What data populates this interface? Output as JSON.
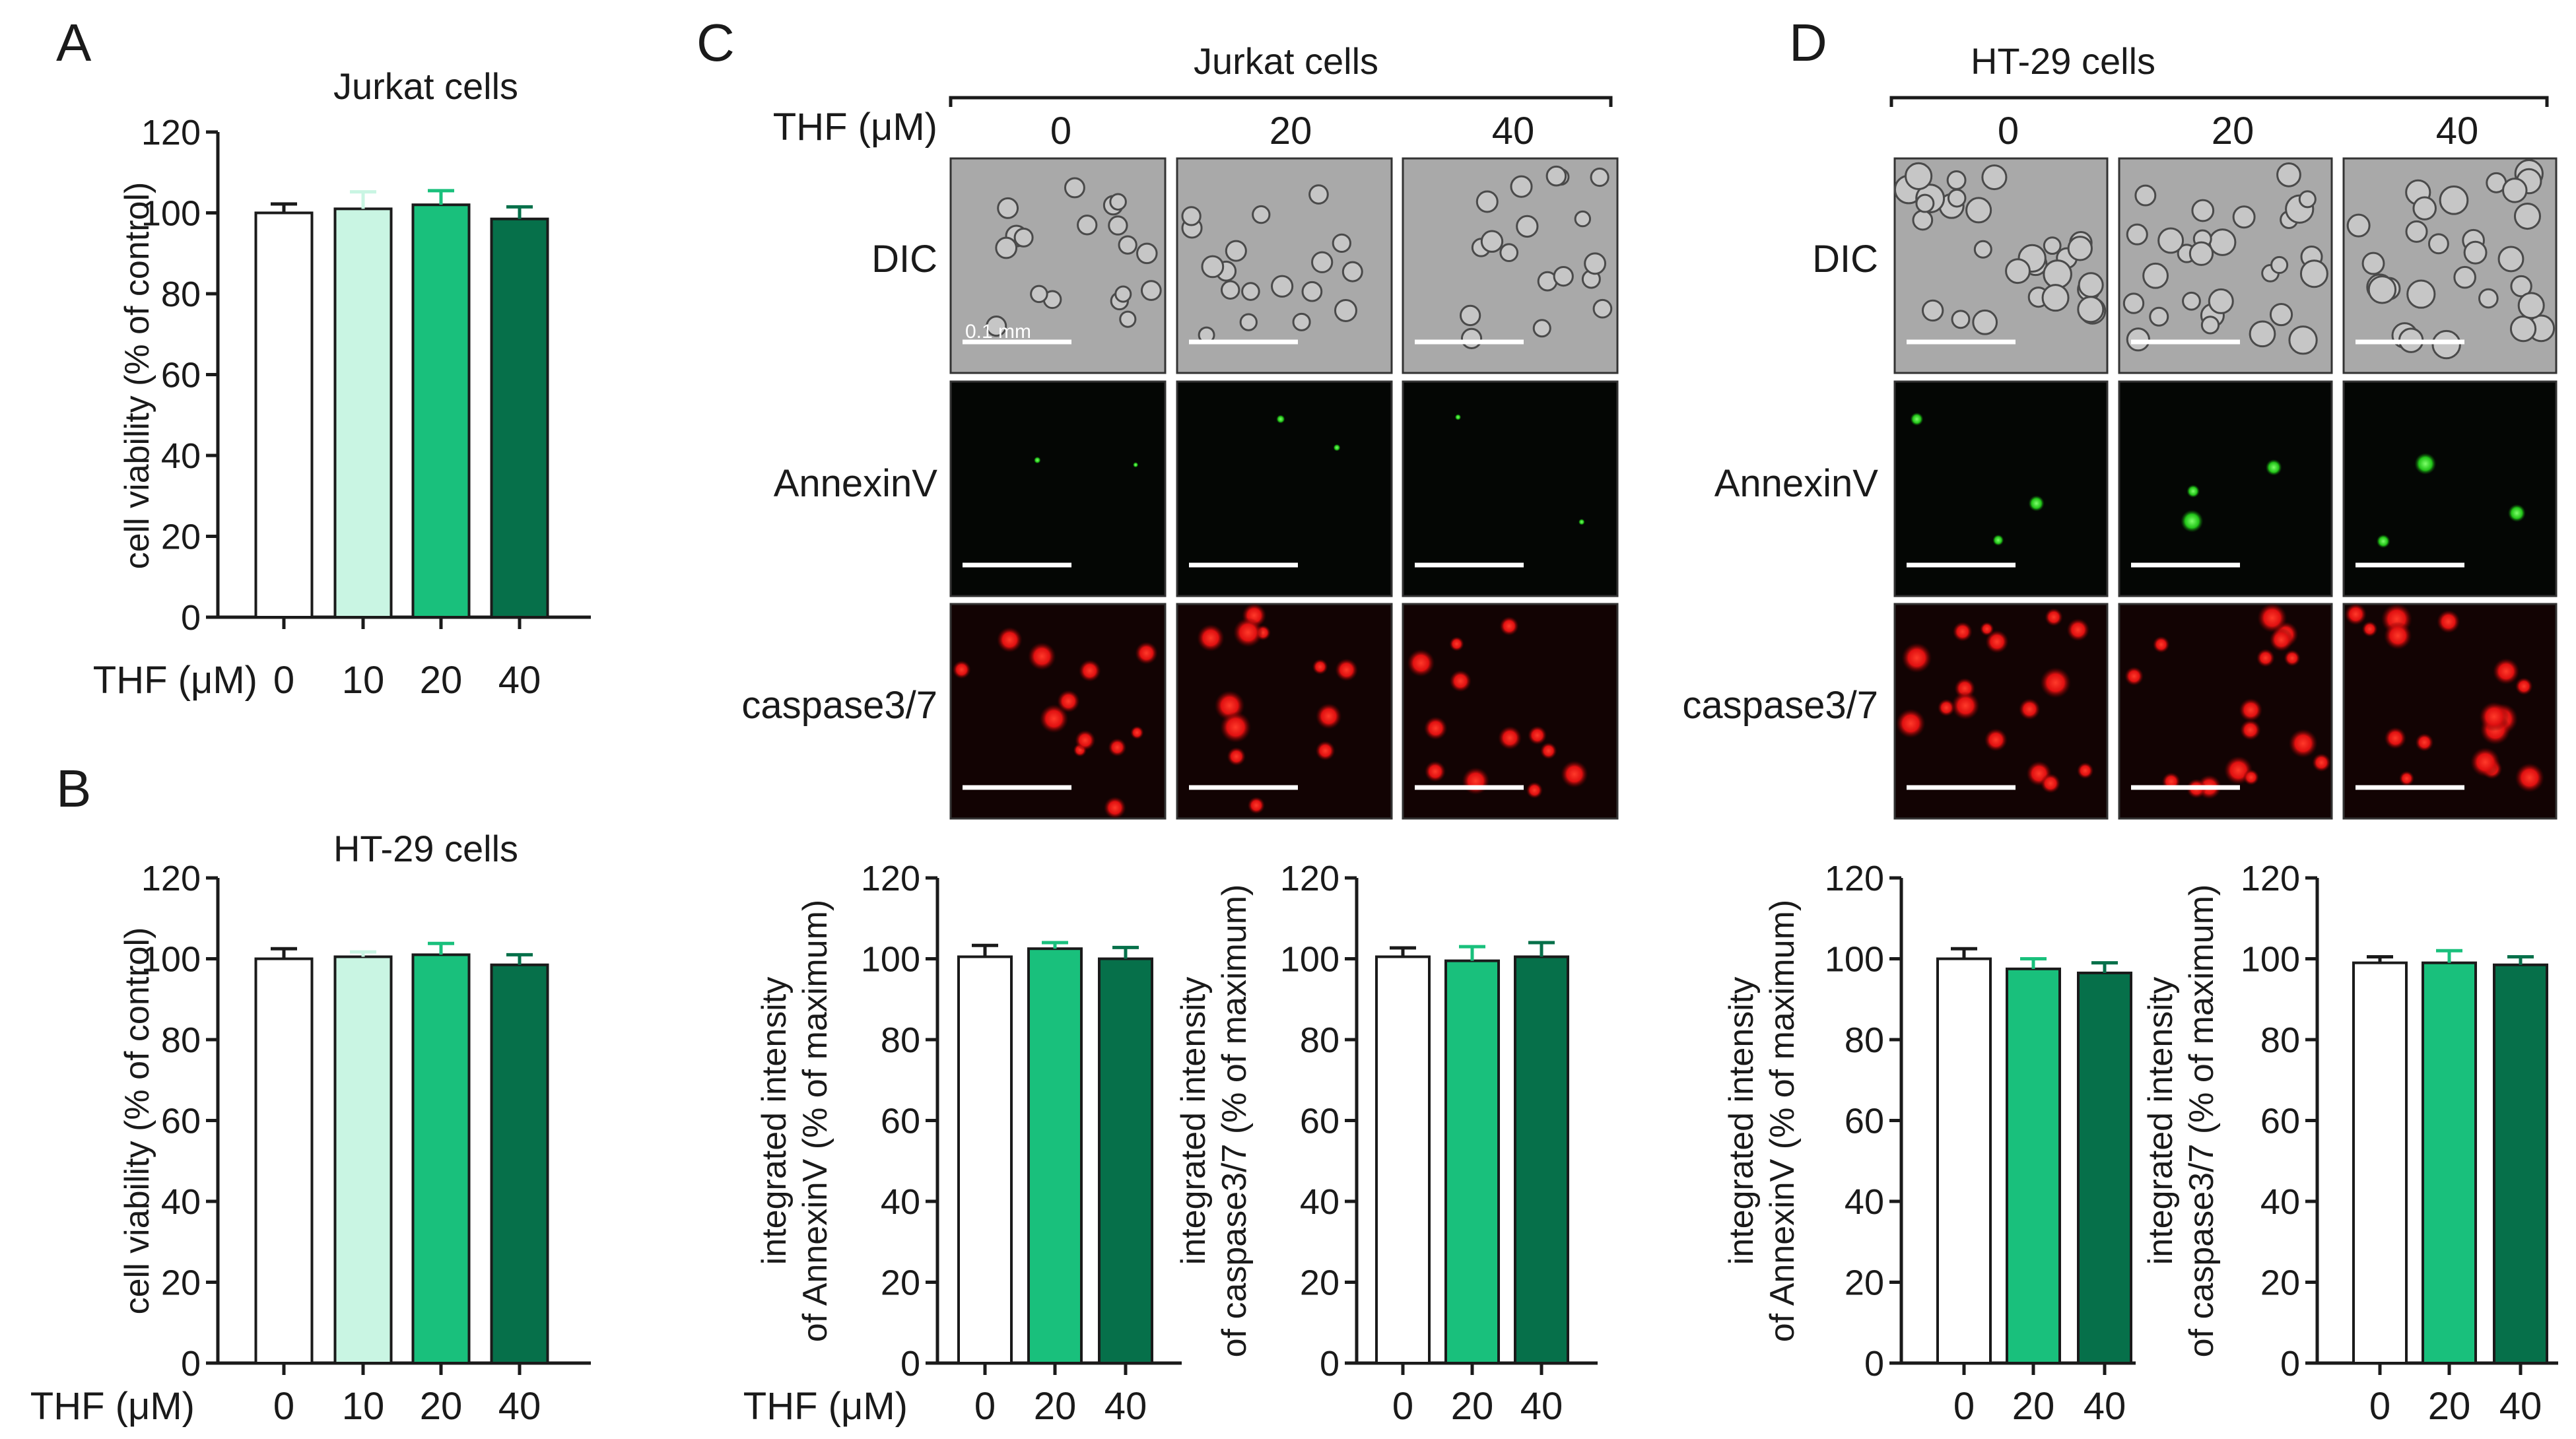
{
  "panels": {
    "A": "A",
    "B": "B",
    "C": "C",
    "D": "D"
  },
  "colors": {
    "c0": "#ffffff",
    "c10": "#c9f5e3",
    "c20": "#19c07c",
    "c40": "#06704a"
  },
  "thf_label": "THF (μM)",
  "microscopy": {
    "C": {
      "title": "Jurkat cells",
      "concs": [
        "0",
        "20",
        "40"
      ],
      "rows": [
        "DIC",
        "AnnexinV",
        "caspase3/7"
      ],
      "scale_label": "0.1 mm"
    },
    "D": {
      "title": "HT-29 cells",
      "concs": [
        "0",
        "20",
        "40"
      ],
      "rows": [
        "DIC",
        "AnnexinV",
        "caspase3/7"
      ]
    }
  },
  "chart_data": [
    {
      "id": "A",
      "type": "bar",
      "title": "Jurkat cells",
      "xlabel": "THF (μM)",
      "ylabel": "cell viability (% of control)",
      "ylim": [
        0,
        120
      ],
      "yticks": [
        "0",
        "20",
        "40",
        "60",
        "80",
        "100",
        "120"
      ],
      "categories": [
        "0",
        "10",
        "20",
        "40"
      ],
      "values": [
        100,
        101,
        102,
        98.5
      ],
      "errors": [
        2.2,
        4.2,
        3.5,
        3.0
      ]
    },
    {
      "id": "B",
      "type": "bar",
      "title": "HT-29 cells",
      "xlabel": "THF (μM)",
      "ylabel": "cell viability (% of control)",
      "ylim": [
        0,
        120
      ],
      "yticks": [
        "0",
        "20",
        "40",
        "60",
        "80",
        "100",
        "120"
      ],
      "categories": [
        "0",
        "10",
        "20",
        "40"
      ],
      "values": [
        100,
        100.5,
        101,
        98.5
      ],
      "errors": [
        2.5,
        1.2,
        2.8,
        2.5
      ]
    },
    {
      "id": "C-annexin",
      "type": "bar",
      "title": "",
      "xlabel": "THF (μM)",
      "ylabel": [
        "integrated intensity",
        "of AnnexinV (% of maximum)"
      ],
      "ylim": [
        0,
        120
      ],
      "yticks": [
        "0",
        "20",
        "40",
        "60",
        "80",
        "100",
        "120"
      ],
      "categories": [
        "0",
        "20",
        "40"
      ],
      "values": [
        100.5,
        102.5,
        100
      ],
      "errors": [
        2.8,
        1.5,
        2.8
      ]
    },
    {
      "id": "C-caspase",
      "type": "bar",
      "title": "",
      "xlabel": "",
      "ylabel": [
        "integrated intensity",
        "of caspase3/7 (% of maximum)"
      ],
      "ylim": [
        0,
        120
      ],
      "yticks": [
        "0",
        "20",
        "40",
        "60",
        "80",
        "100",
        "120"
      ],
      "categories": [
        "0",
        "20",
        "40"
      ],
      "values": [
        100.5,
        99.5,
        100.5
      ],
      "errors": [
        2.2,
        3.5,
        3.5
      ]
    },
    {
      "id": "D-annexin",
      "type": "bar",
      "title": "",
      "xlabel": "",
      "ylabel": [
        "integrated intensity",
        "of AnnexinV (% of maximum)"
      ],
      "ylim": [
        0,
        120
      ],
      "yticks": [
        "0",
        "20",
        "40",
        "60",
        "80",
        "100",
        "120"
      ],
      "categories": [
        "0",
        "20",
        "40"
      ],
      "values": [
        100,
        97.5,
        96.5
      ],
      "errors": [
        2.5,
        2.5,
        2.5
      ]
    },
    {
      "id": "D-caspase",
      "type": "bar",
      "title": "",
      "xlabel": "",
      "ylabel": [
        "integrated intensity",
        "of caspase3/7 (% of maximum)"
      ],
      "ylim": [
        0,
        120
      ],
      "yticks": [
        "0",
        "20",
        "40",
        "60",
        "80",
        "100",
        "120"
      ],
      "categories": [
        "0",
        "20",
        "40"
      ],
      "values": [
        99,
        99,
        98.5
      ],
      "errors": [
        1.5,
        3.0,
        2.0
      ]
    }
  ]
}
